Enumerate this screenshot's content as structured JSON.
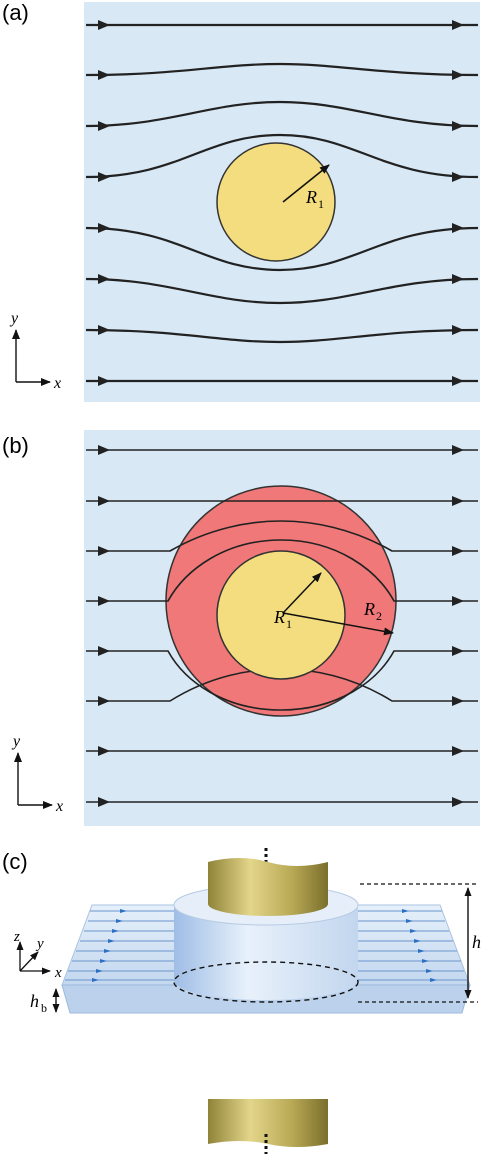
{
  "panels": [
    {
      "label": "(a)",
      "radius_labels": [
        "R",
        "1"
      ]
    },
    {
      "label": "(b)",
      "radius_labels": [
        "R",
        "1",
        "R",
        "2"
      ]
    },
    {
      "label": "(c)",
      "dimension_labels": {
        "h": "h",
        "hb_main": "h",
        "hb_sub": "b"
      }
    }
  ],
  "axes": {
    "x": "x",
    "y": "y",
    "z": "z"
  },
  "colors": {
    "background": "#d8e8f4",
    "inner_cylinder": "#f4dd7e",
    "cloak_shell": "#f07878",
    "streamline": "#222222",
    "slab": "#c9dcf0",
    "rod": "#c9ba62"
  }
}
